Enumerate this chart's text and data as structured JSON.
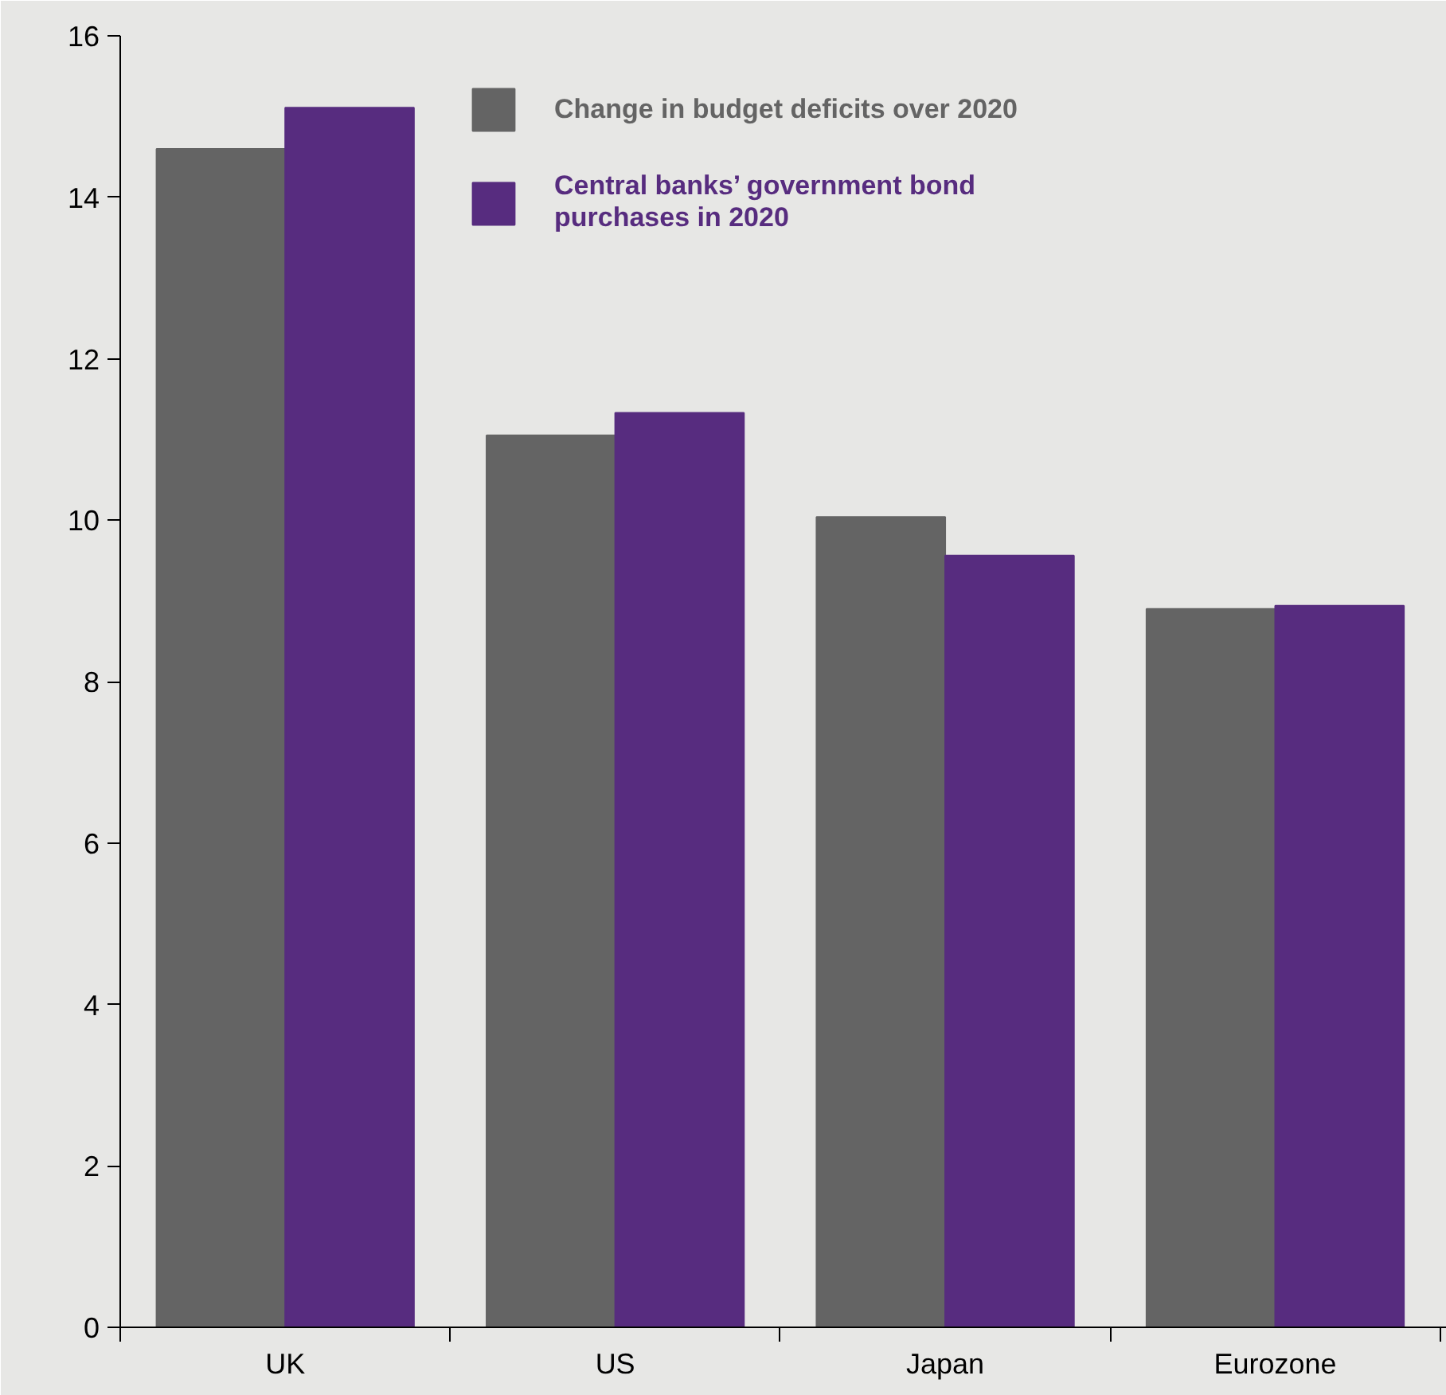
{
  "chart_data": {
    "type": "bar",
    "categories": [
      "UK",
      "US",
      "Japan",
      "Eurozone"
    ],
    "series": [
      {
        "name": "Change in budget deficits over 2020",
        "color": "#646464",
        "values": [
          14.6,
          11.05,
          10.04,
          8.9
        ]
      },
      {
        "name": "Central banks’ government bond purchases in 2020",
        "color": "#572c7f",
        "values": [
          15.11,
          11.33,
          9.56,
          8.94
        ]
      }
    ],
    "ylim": [
      0,
      16
    ],
    "yticks": [
      0,
      2,
      4,
      6,
      8,
      10,
      12,
      14,
      16
    ],
    "legend": "top right"
  }
}
